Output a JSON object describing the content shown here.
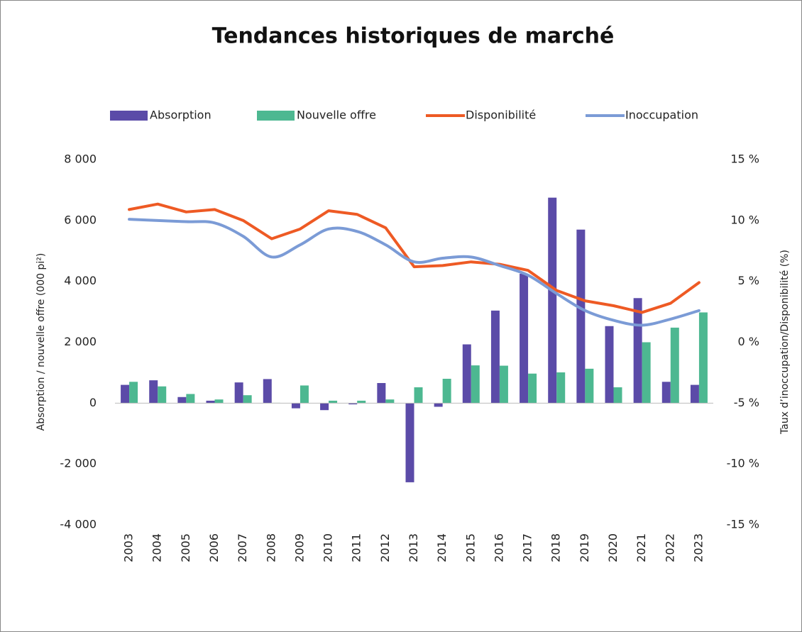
{
  "chart_data": {
    "type": "bar",
    "title": "Tendances historiques de marché",
    "y_label": "Absorption / nouvelle offre (000 pi²)",
    "y2_label": "Taux d’inoccupation/Disponibilité (%)",
    "categories": [
      "2003",
      "2004",
      "2005",
      "2006",
      "2007",
      "2008",
      "2009",
      "2010",
      "2011",
      "2012",
      "2013",
      "2014",
      "2015",
      "2016",
      "2017",
      "2018",
      "2019",
      "2020",
      "2021",
      "2022",
      "2023"
    ],
    "series": [
      {
        "name": "Absorption",
        "type": "bar",
        "color": "#5b4ba8",
        "values": [
          600,
          750,
          200,
          80,
          680,
          790,
          -170,
          -230,
          -40,
          660,
          -2600,
          -120,
          1930,
          3040,
          4250,
          6750,
          5700,
          2530,
          3450,
          700,
          600
        ]
      },
      {
        "name": "Nouvelle offre",
        "type": "bar",
        "color": "#4db891",
        "values": [
          700,
          550,
          300,
          120,
          260,
          10,
          580,
          80,
          80,
          120,
          520,
          800,
          1240,
          1230,
          970,
          1010,
          1130,
          520,
          2000,
          2480,
          2980
        ]
      },
      {
        "name": "Disponibilité",
        "type": "line",
        "axis": "y2",
        "color": "#ee5a24",
        "values": [
          10.9,
          11.35,
          10.7,
          10.9,
          10.0,
          8.5,
          9.3,
          10.8,
          10.5,
          9.4,
          6.2,
          6.3,
          6.6,
          6.4,
          5.9,
          4.25,
          3.4,
          3.0,
          2.45,
          3.2,
          4.9
        ]
      },
      {
        "name": "Inoccupation",
        "type": "line",
        "axis": "y2",
        "smooth": true,
        "color": "#7b9bd6",
        "values": [
          10.1,
          10.0,
          9.9,
          9.8,
          8.7,
          7.0,
          8.0,
          9.3,
          9.1,
          8.0,
          6.6,
          6.9,
          7.0,
          6.3,
          5.5,
          4.0,
          2.6,
          1.8,
          1.4,
          1.9,
          2.6
        ]
      }
    ],
    "ylim": [
      -4000,
      8000
    ],
    "yticks": [
      {
        "value": -4000,
        "label": "-4 000"
      },
      {
        "value": -2000,
        "label": "-2 000"
      },
      0,
      {
        "value": 2000,
        "label": "2 000"
      },
      {
        "value": 4000,
        "label": "4 000"
      },
      {
        "value": 6000,
        "label": "6 000"
      },
      {
        "value": 8000,
        "label": "8 000"
      }
    ],
    "y2lim": [
      -15,
      15
    ],
    "y2ticks": [
      {
        "value": -15,
        "label": "-15 %"
      },
      {
        "value": -10,
        "label": "-10 %"
      },
      {
        "value": -5,
        "label": "-5 %"
      },
      {
        "value": 0,
        "label": "0 %"
      },
      {
        "value": 5,
        "label": "5 %"
      },
      {
        "value": 10,
        "label": "10 %"
      },
      {
        "value": 15,
        "label": "15 %"
      }
    ],
    "legend": "top",
    "grid": false
  }
}
